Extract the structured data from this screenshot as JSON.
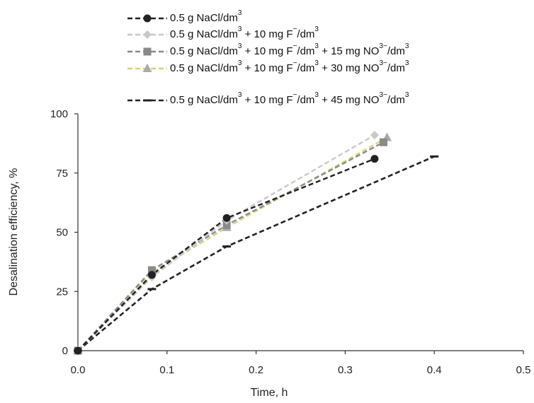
{
  "chart_data": {
    "type": "line",
    "xlabel": "Time, h",
    "ylabel": "Desalination efficiency, %",
    "xlim": [
      0,
      0.5
    ],
    "ylim": [
      0,
      100
    ],
    "x_ticks": [
      "0.0",
      "0.1",
      "0.2",
      "0.3",
      "0.4",
      "0.5"
    ],
    "y_ticks": [
      "0",
      "25",
      "50",
      "75",
      "100"
    ],
    "grid": false,
    "legend_position": "top",
    "series": [
      {
        "key": "s1",
        "color": "#222222",
        "marker": "circle",
        "legend": {
          "parts": [
            "0.5 g NaCl/dm",
            "3"
          ]
        },
        "points": [
          [
            0,
            0
          ],
          [
            0.083,
            32
          ],
          [
            0.167,
            56
          ],
          [
            0.333,
            81
          ]
        ]
      },
      {
        "key": "s2",
        "color": "#c8c8c8",
        "marker": "diamond",
        "legend": {
          "parts": [
            "0.5 g NaCl/dm",
            "3",
            " + 10 mg F",
            "−",
            "/dm",
            "3"
          ]
        },
        "points": [
          [
            0,
            0
          ],
          [
            0.083,
            31
          ],
          [
            0.167,
            55
          ],
          [
            0.333,
            91
          ]
        ]
      },
      {
        "key": "s3",
        "color": "#8a8a8a",
        "marker": "square",
        "legend": {
          "parts": [
            "0.5 g NaCl/dm",
            "3",
            " + 10 mg F",
            "−",
            "/dm",
            "3",
            " + 15 mg NO",
            "3−",
            "/dm",
            "3"
          ]
        },
        "points": [
          [
            0,
            0
          ],
          [
            0.083,
            34
          ],
          [
            0.167,
            53
          ],
          [
            0.343,
            88
          ]
        ]
      },
      {
        "key": "s4",
        "color": "#d8d47a",
        "marker": "triangle",
        "legend": {
          "parts": [
            "0.5 g NaCl/dm",
            "3",
            " + 10 mg F",
            "−",
            "/dm",
            "3",
            " + 30 mg NO",
            "3−",
            "/dm",
            "3"
          ]
        },
        "points": [
          [
            0,
            0
          ],
          [
            0.083,
            33
          ],
          [
            0.167,
            52
          ],
          [
            0.347,
            90
          ]
        ]
      },
      {
        "key": "s5",
        "color": "#222222",
        "marker": "dash",
        "legend": {
          "parts": [
            "0.5 g NaCl/dm",
            "3",
            " + 10 mg F",
            "−",
            "/dm",
            "3",
            " + 45 mg NO",
            "3−",
            "/dm",
            "3"
          ]
        },
        "points": [
          [
            0,
            0
          ],
          [
            0.083,
            26
          ],
          [
            0.167,
            44
          ],
          [
            0.4,
            82
          ]
        ]
      }
    ]
  }
}
